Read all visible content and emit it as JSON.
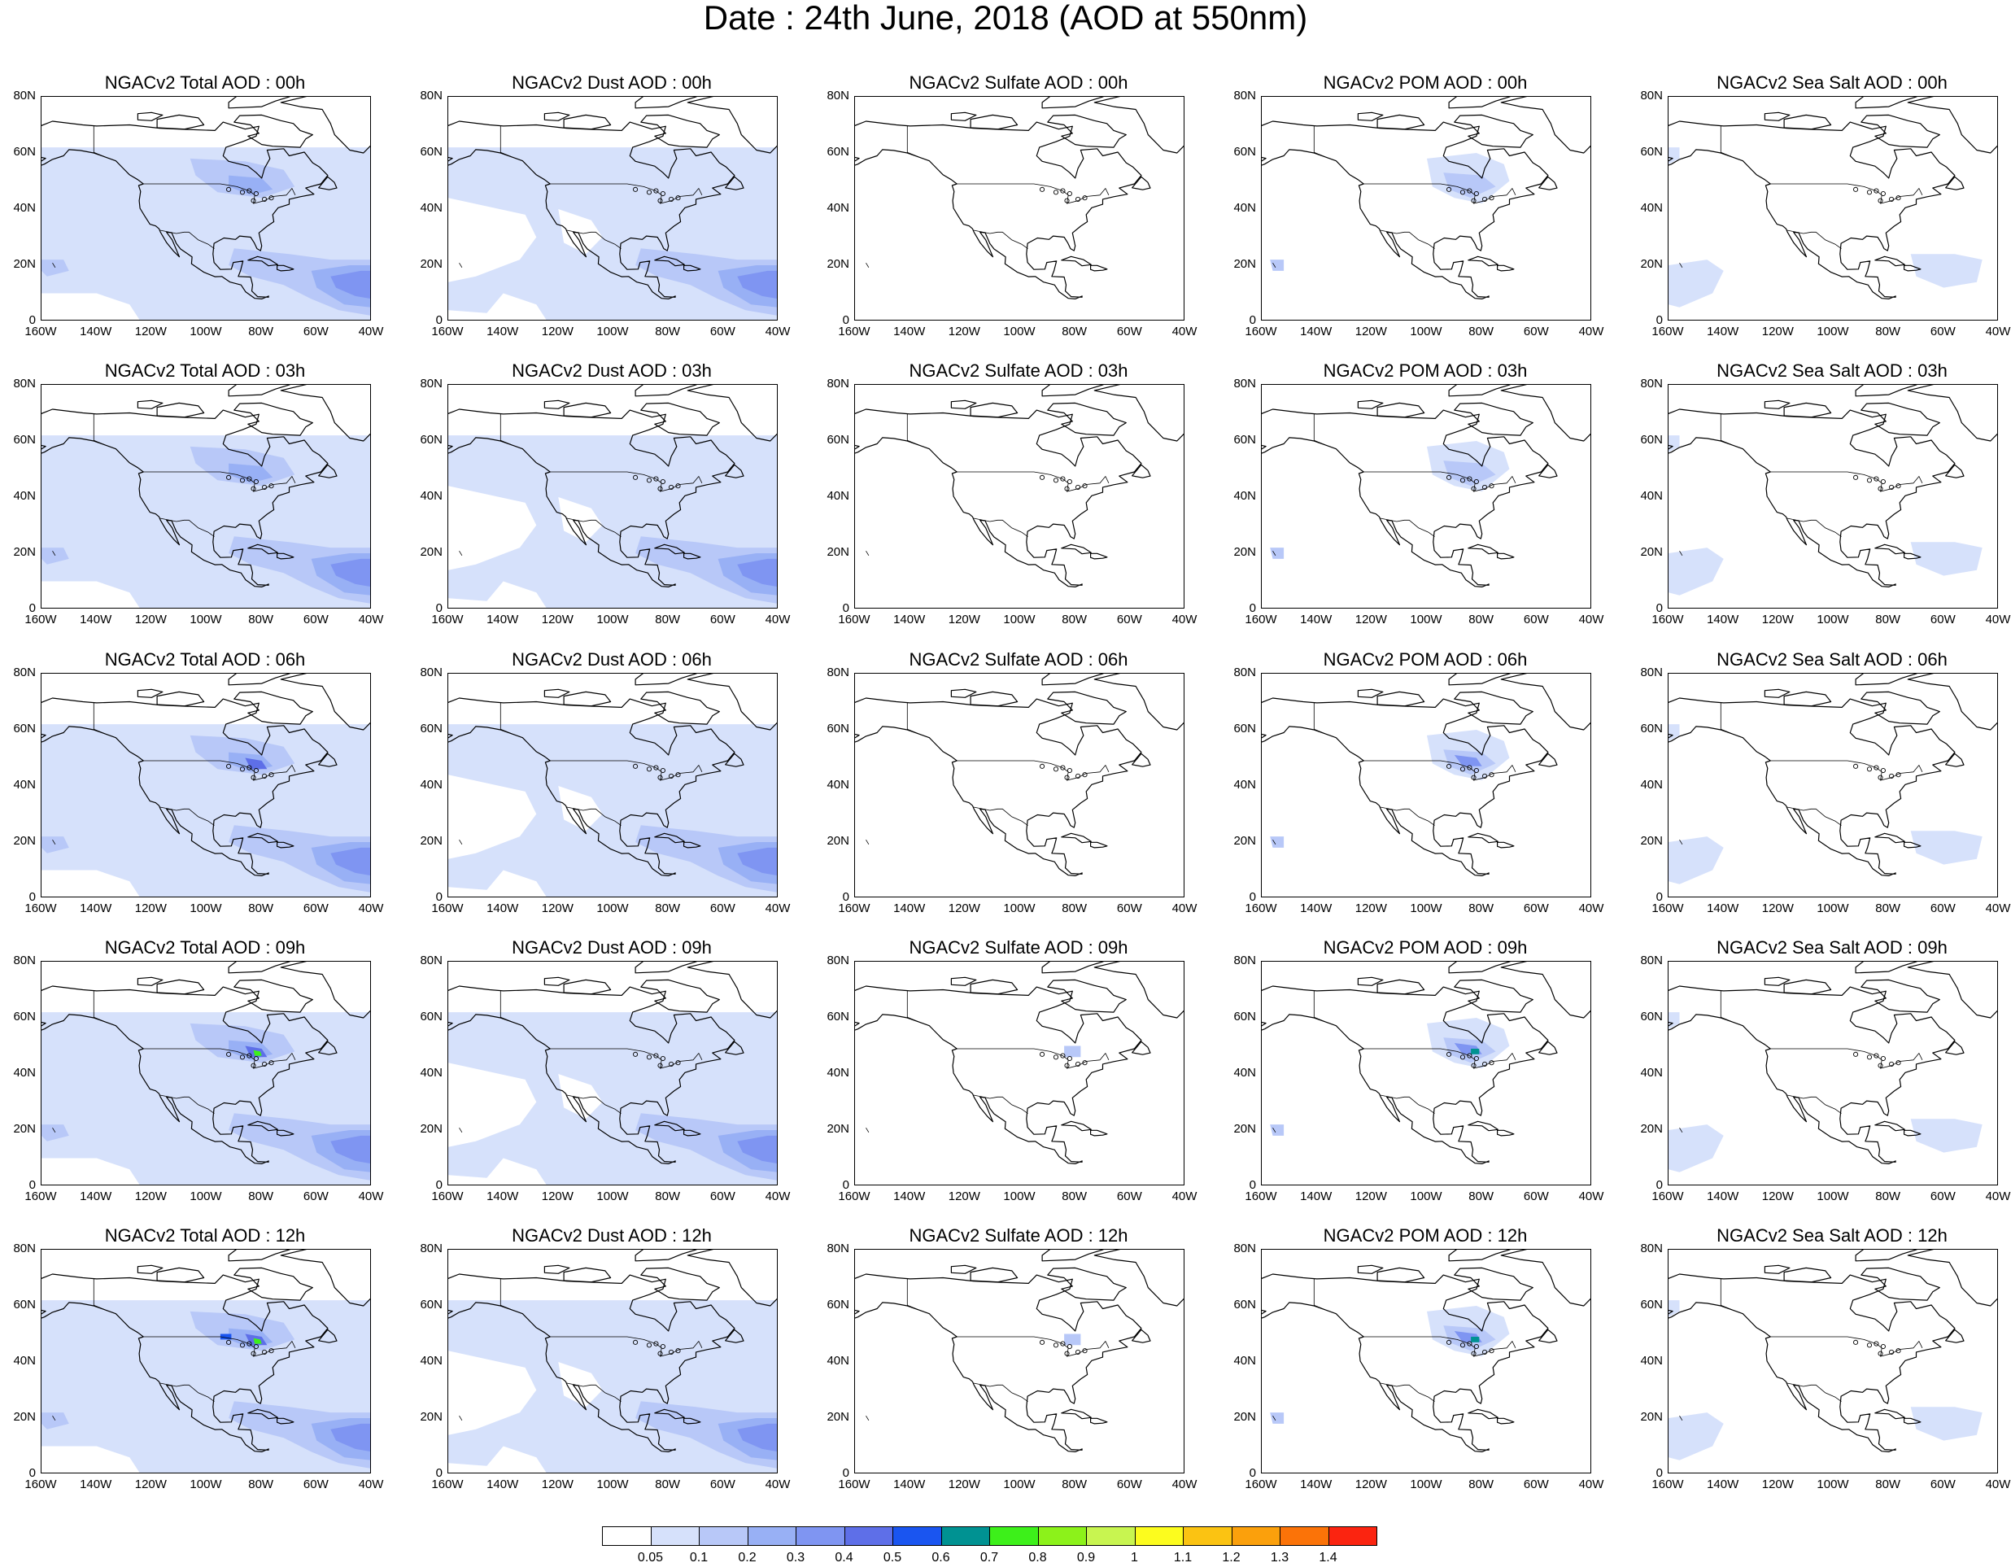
{
  "title": "Date : 24th June, 2018 (AOD at 550nm)",
  "panels": [
    [
      "NGACv2 Total AOD : 00h",
      "NGACv2 Dust AOD : 00h",
      "NGACv2 Sulfate AOD : 00h",
      "NGACv2 POM AOD : 00h",
      "NGACv2 Sea Salt AOD : 00h"
    ],
    [
      "NGACv2 Total AOD : 03h",
      "NGACv2 Dust AOD : 03h",
      "NGACv2 Sulfate AOD : 03h",
      "NGACv2 POM AOD : 03h",
      "NGACv2 Sea Salt AOD : 03h"
    ],
    [
      "NGACv2 Total AOD : 06h",
      "NGACv2 Dust AOD : 06h",
      "NGACv2 Sulfate AOD : 06h",
      "NGACv2 POM AOD : 06h",
      "NGACv2 Sea Salt AOD : 06h"
    ],
    [
      "NGACv2 Total AOD : 09h",
      "NGACv2 Dust AOD : 09h",
      "NGACv2 Sulfate AOD : 09h",
      "NGACv2 POM AOD : 09h",
      "NGACv2 Sea Salt  AOD : 09h"
    ],
    [
      "NGACv2 Total AOD  : 12h",
      "NGACv2 Dust AOD : 12h",
      "NGACv2 Sulfate AOD : 12h",
      "NGACv2 POM  AOD : 12h",
      "NGACv2 Sea Salt  AOD : 12h"
    ]
  ],
  "axes": {
    "lat_labels": [
      "80N",
      "60N",
      "40N",
      "20N",
      "0"
    ],
    "lon_labels": [
      "160W",
      "140W",
      "120W",
      "100W",
      "80W",
      "60W",
      "40W"
    ]
  },
  "colorbar": {
    "colors": [
      "#ffffff",
      "#d6e1fb",
      "#b8c8f8",
      "#98b0f5",
      "#7f95f2",
      "#5e6fe8",
      "#1a55f0",
      "#009292",
      "#3df01a",
      "#8cf21a",
      "#c8f550",
      "#fcfc1e",
      "#fbc312",
      "#fba00c",
      "#fb7308",
      "#fb2410"
    ],
    "labels": [
      "0.05",
      "0.1",
      "0.2",
      "0.3",
      "0.4",
      "0.5",
      "0.6",
      "0.7",
      "0.8",
      "0.9",
      "1",
      "1.1",
      "1.2",
      "1.3",
      "1.4"
    ]
  }
}
